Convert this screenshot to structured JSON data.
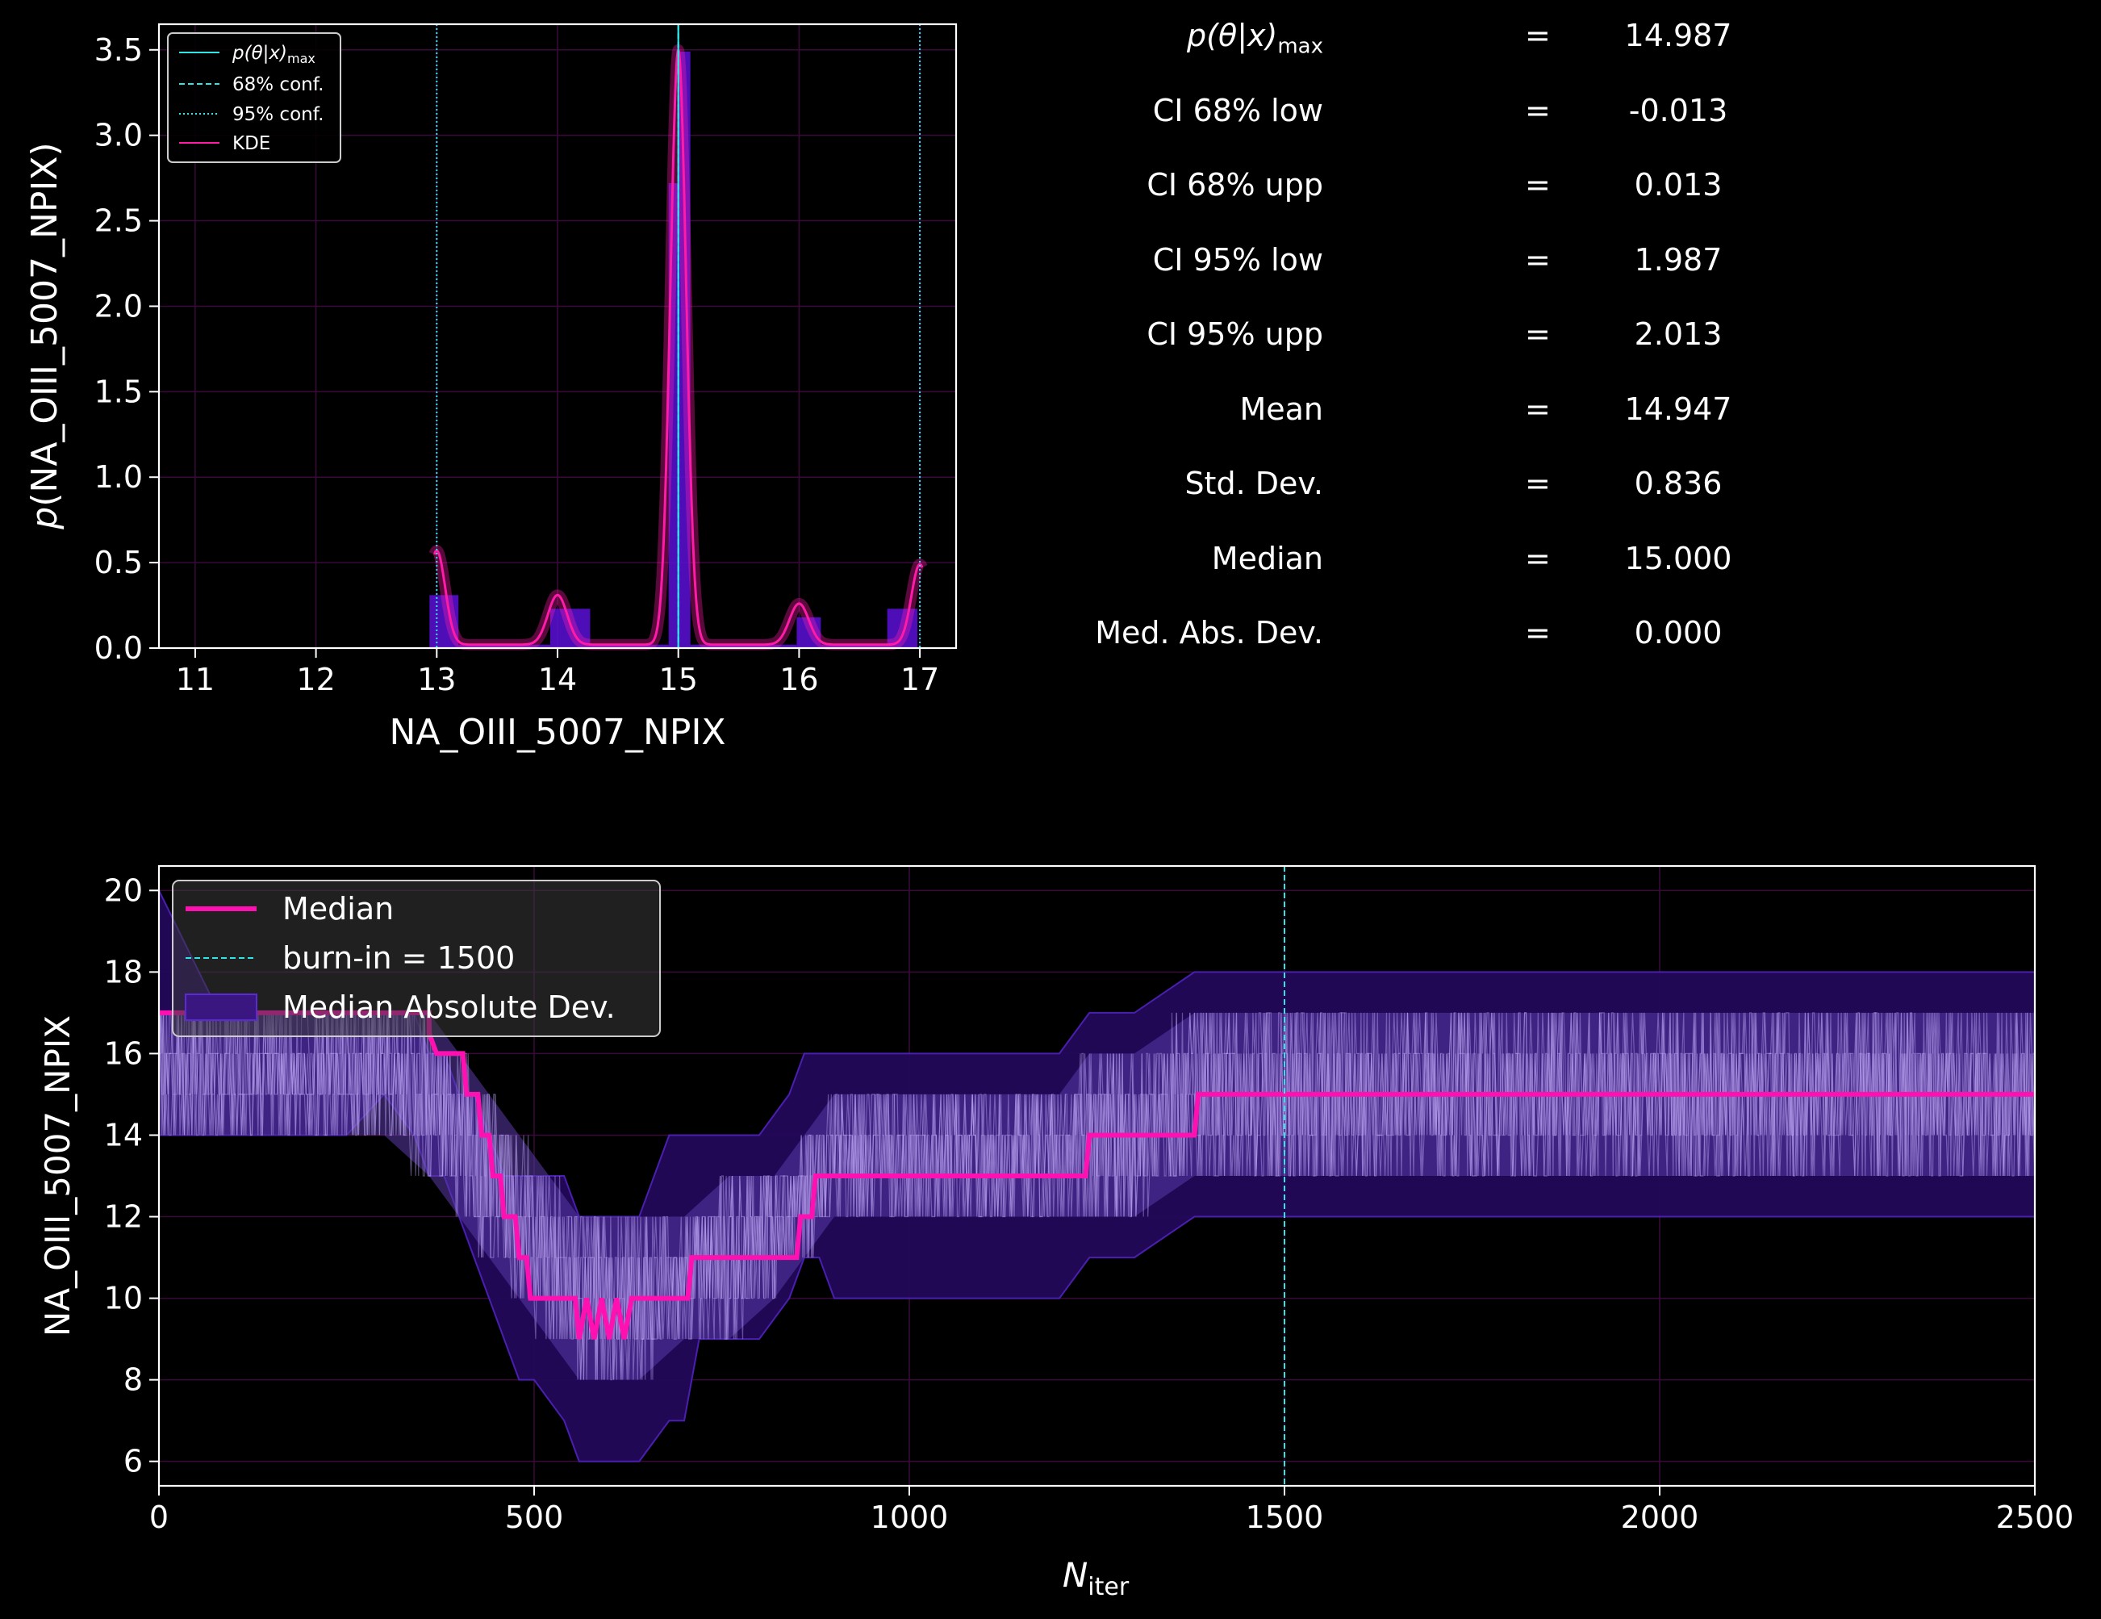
{
  "colors": {
    "background": "#000000",
    "axes": "#ffffff",
    "grid": "#3a0a3a",
    "conf": "#2ee6e6",
    "kde": "#ff1aa8",
    "hist": "#5b10d8",
    "mad_band": "#2a0a5a",
    "trace": "#b9a0f0",
    "median": "#ff10b0"
  },
  "stats": {
    "rows": [
      {
        "label": "p(θ|x)",
        "sub": "max",
        "eq": "=",
        "value": "14.987"
      },
      {
        "label": "CI 68% low",
        "sub": "",
        "eq": "=",
        "value": "-0.013"
      },
      {
        "label": "CI 68% upp",
        "sub": "",
        "eq": "=",
        "value": "0.013"
      },
      {
        "label": "CI 95% low",
        "sub": "",
        "eq": "=",
        "value": "1.987"
      },
      {
        "label": "CI 95% upp",
        "sub": "",
        "eq": "=",
        "value": "2.013"
      },
      {
        "label": "Mean",
        "sub": "",
        "eq": "=",
        "value": "14.947"
      },
      {
        "label": "Std.  Dev.",
        "sub": "",
        "eq": "=",
        "value": "0.836"
      },
      {
        "label": "Median",
        "sub": "",
        "eq": "=",
        "value": "15.000"
      },
      {
        "label": "Med. Abs. Dev.",
        "sub": "",
        "eq": "=",
        "value": "0.000"
      }
    ]
  },
  "chart_data": [
    {
      "type": "bar",
      "title": "",
      "xlabel": "NA_OIII_5007_NPIX",
      "ylabel": "p(NA_OIII_5007_NPIX)",
      "xlim": [
        10.7,
        17.3
      ],
      "ylim": [
        0,
        3.65
      ],
      "xticks": [
        11,
        12,
        13,
        14,
        15,
        16,
        17
      ],
      "yticks": [
        0.0,
        0.5,
        1.0,
        1.5,
        2.0,
        2.5,
        3.0,
        3.5
      ],
      "xtick_labels": [
        "11",
        "12",
        "13",
        "14",
        "15",
        "16",
        "17"
      ],
      "ytick_labels": [
        "0.0",
        "0.5",
        "1.0",
        "1.5",
        "2.0",
        "2.5",
        "3.0",
        "3.5"
      ],
      "grid": true,
      "legend_position": "top-left",
      "legend": [
        {
          "label": "p(θ|x)",
          "sub": "max",
          "style": "solid-cyan"
        },
        {
          "label": "68% conf.",
          "sub": "",
          "style": "dashed-cyan"
        },
        {
          "label": "95% conf.",
          "sub": "",
          "style": "dotted-cyan"
        },
        {
          "label": "KDE",
          "sub": "",
          "style": "solid-magenta"
        }
      ],
      "histogram": [
        {
          "x0": 12.94,
          "x1": 13.18,
          "y": 0.31
        },
        {
          "x0": 13.18,
          "x1": 13.94,
          "y": 0.02
        },
        {
          "x0": 13.94,
          "x1": 14.06,
          "y": 0.23
        },
        {
          "x0": 14.06,
          "x1": 14.27,
          "y": 0.23
        },
        {
          "x0": 14.27,
          "x1": 14.92,
          "y": 0.02
        },
        {
          "x0": 14.92,
          "x1": 15.0,
          "y": 2.72
        },
        {
          "x0": 15.0,
          "x1": 15.1,
          "y": 3.49
        },
        {
          "x0": 15.1,
          "x1": 15.98,
          "y": 0.02
        },
        {
          "x0": 15.98,
          "x1": 16.18,
          "y": 0.18
        },
        {
          "x0": 16.18,
          "x1": 16.73,
          "y": 0.02
        },
        {
          "x0": 16.73,
          "x1": 16.98,
          "y": 0.23
        }
      ],
      "kde_peaks": [
        {
          "mu": 13.0,
          "amp": 0.55,
          "sigma": 0.07
        },
        {
          "mu": 14.0,
          "amp": 0.29,
          "sigma": 0.08
        },
        {
          "mu": 15.0,
          "amp": 3.48,
          "sigma": 0.065
        },
        {
          "mu": 16.0,
          "amp": 0.24,
          "sigma": 0.08
        },
        {
          "mu": 17.0,
          "amp": 0.47,
          "sigma": 0.07
        }
      ],
      "kde_range": [
        12.98,
        17.02
      ],
      "pmax": 15.0,
      "conf68": [
        15.0,
        15.0
      ],
      "conf95": [
        13.0,
        17.0
      ]
    },
    {
      "type": "line",
      "title": "",
      "xlabel": "N",
      "xlabel_sub": "iter",
      "ylabel": "NA_OIII_5007_NPIX",
      "xlim": [
        0,
        2500
      ],
      "ylim": [
        5.4,
        20.6
      ],
      "xticks": [
        0,
        500,
        1000,
        1500,
        2000,
        2500
      ],
      "yticks": [
        6,
        8,
        10,
        12,
        14,
        16,
        18,
        20
      ],
      "xtick_labels": [
        "0",
        "500",
        "1000",
        "1500",
        "2000",
        "2500"
      ],
      "ytick_labels": [
        "6",
        "8",
        "10",
        "12",
        "14",
        "16",
        "18",
        "20"
      ],
      "grid": true,
      "legend_position": "top-left",
      "legend": [
        {
          "label": "Median",
          "style": "solid-magenta"
        },
        {
          "label": "burn-in = 1500",
          "style": "dashed-cyan"
        },
        {
          "label": "Median Absolute Dev.",
          "style": "band-purple"
        }
      ],
      "burn_in": 1500,
      "median": [
        [
          0,
          17
        ],
        [
          360,
          17
        ],
        [
          360,
          16.5
        ],
        [
          370,
          16
        ],
        [
          405,
          16
        ],
        [
          410,
          15
        ],
        [
          425,
          15
        ],
        [
          430,
          14
        ],
        [
          440,
          14
        ],
        [
          445,
          13
        ],
        [
          455,
          13
        ],
        [
          460,
          12
        ],
        [
          475,
          12
        ],
        [
          480,
          11
        ],
        [
          490,
          11
        ],
        [
          495,
          10
        ],
        [
          555,
          10
        ],
        [
          560,
          9
        ],
        [
          570,
          10
        ],
        [
          580,
          9
        ],
        [
          590,
          10
        ],
        [
          600,
          9
        ],
        [
          610,
          10
        ],
        [
          620,
          9
        ],
        [
          630,
          10
        ],
        [
          705,
          10
        ],
        [
          710,
          11
        ],
        [
          850,
          11
        ],
        [
          855,
          12
        ],
        [
          870,
          12
        ],
        [
          875,
          13
        ],
        [
          1235,
          13
        ],
        [
          1240,
          14
        ],
        [
          1380,
          14
        ],
        [
          1385,
          15
        ],
        [
          2500,
          15
        ]
      ],
      "mad_band": [
        [
          0,
          14,
          20
        ],
        [
          80,
          14,
          17
        ],
        [
          180,
          14,
          17
        ],
        [
          250,
          14,
          17
        ],
        [
          300,
          15,
          17
        ],
        [
          340,
          14,
          17
        ],
        [
          360,
          13,
          16
        ],
        [
          380,
          13,
          16
        ],
        [
          400,
          12,
          15
        ],
        [
          420,
          11,
          15
        ],
        [
          440,
          10,
          14
        ],
        [
          460,
          9,
          13
        ],
        [
          480,
          8,
          13
        ],
        [
          500,
          8,
          13
        ],
        [
          540,
          7,
          13
        ],
        [
          560,
          6,
          12
        ],
        [
          600,
          6,
          12
        ],
        [
          640,
          6,
          12
        ],
        [
          680,
          7,
          14
        ],
        [
          700,
          7,
          14
        ],
        [
          720,
          9,
          14
        ],
        [
          800,
          9,
          14
        ],
        [
          840,
          10,
          15
        ],
        [
          860,
          11,
          16
        ],
        [
          880,
          11,
          16
        ],
        [
          900,
          10,
          16
        ],
        [
          1000,
          10,
          16
        ],
        [
          1100,
          10,
          16
        ],
        [
          1200,
          10,
          16
        ],
        [
          1240,
          11,
          17
        ],
        [
          1300,
          11,
          17
        ],
        [
          1380,
          12,
          18
        ],
        [
          1500,
          12,
          18
        ],
        [
          2000,
          12,
          18
        ],
        [
          2500,
          12,
          18
        ]
      ],
      "trace_envelope": [
        [
          0,
          14,
          17
        ],
        [
          100,
          14,
          17
        ],
        [
          200,
          14,
          17
        ],
        [
          300,
          14,
          17
        ],
        [
          360,
          13,
          17
        ],
        [
          400,
          12,
          16
        ],
        [
          440,
          11,
          15
        ],
        [
          480,
          10,
          14
        ],
        [
          520,
          9,
          13
        ],
        [
          560,
          8,
          12
        ],
        [
          600,
          8,
          12
        ],
        [
          640,
          8,
          12
        ],
        [
          700,
          9,
          12
        ],
        [
          760,
          9,
          13
        ],
        [
          820,
          10,
          13
        ],
        [
          860,
          11,
          14
        ],
        [
          900,
          12,
          15
        ],
        [
          1000,
          12,
          15
        ],
        [
          1100,
          12,
          15
        ],
        [
          1200,
          12,
          15
        ],
        [
          1240,
          12,
          16
        ],
        [
          1300,
          12,
          16
        ],
        [
          1380,
          13,
          17
        ],
        [
          1500,
          13,
          17
        ],
        [
          2000,
          13,
          17
        ],
        [
          2500,
          13,
          17
        ]
      ]
    }
  ]
}
